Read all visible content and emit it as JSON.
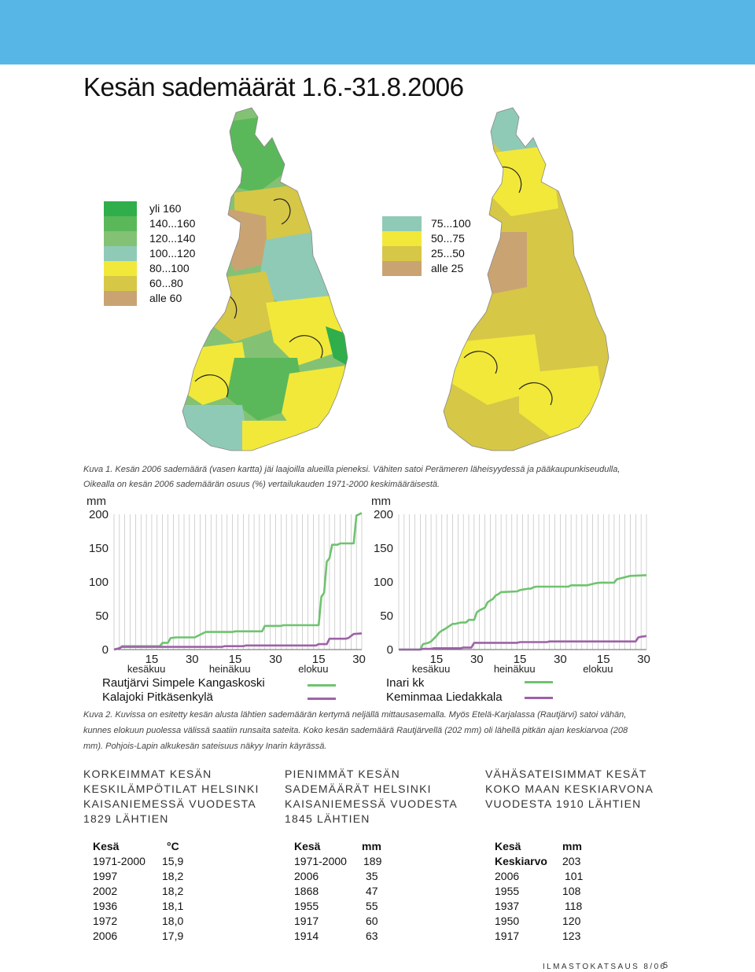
{
  "header": {
    "title": "Kesän sademäärät 1.6.-31.8.2006"
  },
  "colors": {
    "band": "#57b6e6",
    "dark_green": "#2fae4b",
    "green": "#5bb85a",
    "light_green": "#83c274",
    "teal": "#8fcab7",
    "yellow": "#f2e83a",
    "olive": "#d6c747",
    "tan": "#c9a472",
    "series_green": "#6fc36f",
    "series_purple": "#9e62a8"
  },
  "legend_left": {
    "items": [
      {
        "label": "yli 160",
        "color": "#2fae4b"
      },
      {
        "label": "140...160",
        "color": "#5bb85a"
      },
      {
        "label": "120...140",
        "color": "#83c274"
      },
      {
        "label": "100...120",
        "color": "#8fcab7"
      },
      {
        "label": "80...100",
        "color": "#f2e83a"
      },
      {
        "label": "60...80",
        "color": "#d6c747"
      },
      {
        "label": "alle 60",
        "color": "#c9a472"
      }
    ]
  },
  "legend_right": {
    "items": [
      {
        "label": "75...100",
        "color": "#8fcab7"
      },
      {
        "label": "50...75",
        "color": "#f2e83a"
      },
      {
        "label": "25...50",
        "color": "#d6c747"
      },
      {
        "label": "alle 25",
        "color": "#c9a472"
      }
    ]
  },
  "caption1": {
    "line1": "Kuva 1. Kesän 2006 sademäärä (vasen kartta) jäi laajoilla alueilla pieneksi. Vähiten satoi Perämeren läheisyydessä ja pääkaupunkiseudulla,",
    "line2": "Oikealla on kesän 2006 sademäärän osuus  (%) vertailukauden 1971-2000 keskimääräisestä."
  },
  "chart_data": [
    {
      "type": "line",
      "ylabel": "mm",
      "ylim": [
        0,
        200
      ],
      "yticks": [
        "0",
        "50",
        "100",
        "150",
        "200"
      ],
      "xticks": [
        "15",
        "30",
        "15",
        "30",
        "15",
        "30"
      ],
      "months": [
        "kesäkuu",
        "heinäkuu",
        "elokuu"
      ],
      "series": [
        {
          "name": "Rautjärvi Simpele Kangaskoski",
          "color": "#6fc36f",
          "x": [
            0,
            2,
            3,
            10,
            11,
            17,
            18,
            20,
            21,
            23,
            24,
            29,
            30,
            34,
            35,
            44,
            45,
            48,
            49,
            55,
            56,
            58,
            59,
            62,
            63,
            67,
            68,
            75,
            76,
            77,
            78,
            79,
            80,
            81,
            83,
            84,
            89,
            90,
            92
          ],
          "values": [
            0,
            2,
            5,
            5,
            5,
            5,
            10,
            10,
            17,
            18,
            18,
            18,
            18,
            26,
            26,
            26,
            27,
            27,
            27,
            27,
            35,
            35,
            35,
            35,
            36,
            36,
            36,
            36,
            36,
            78,
            84,
            130,
            135,
            155,
            155,
            157,
            157,
            198,
            202
          ]
        },
        {
          "name": "Kalajoki Pitkäsenkylä",
          "color": "#9e62a8",
          "x": [
            0,
            2,
            3,
            40,
            41,
            48,
            49,
            75,
            76,
            79,
            80,
            86,
            87,
            89,
            92
          ],
          "values": [
            0,
            2,
            4,
            4,
            5,
            5,
            6,
            6,
            8,
            8,
            16,
            16,
            17,
            23,
            24
          ]
        }
      ]
    },
    {
      "type": "line",
      "ylabel": "mm",
      "ylim": [
        0,
        200
      ],
      "yticks": [
        "0",
        "50",
        "100",
        "150",
        "200"
      ],
      "xticks": [
        "15",
        "30",
        "15",
        "30",
        "15",
        "30"
      ],
      "months": [
        "kesäkuu",
        "heinäkuu",
        "elokuu"
      ],
      "series": [
        {
          "name": "Inari kk",
          "color": "#6fc36f",
          "x": [
            0,
            8,
            9,
            11,
            12,
            14,
            15,
            16,
            17,
            20,
            21,
            23,
            24,
            25,
            26,
            28,
            29,
            30,
            31,
            32,
            33,
            35,
            36,
            37,
            38,
            44,
            45,
            48,
            49,
            50,
            51,
            58,
            59,
            63,
            64,
            70,
            71,
            73,
            75,
            80,
            81,
            84,
            86,
            92
          ],
          "values": [
            0,
            0,
            8,
            10,
            12,
            20,
            25,
            28,
            30,
            38,
            38,
            40,
            40,
            40,
            44,
            44,
            55,
            58,
            60,
            62,
            70,
            75,
            80,
            82,
            85,
            86,
            88,
            90,
            90,
            92,
            93,
            93,
            93,
            93,
            95,
            95,
            96,
            98,
            99,
            99,
            104,
            107,
            109,
            110
          ]
        },
        {
          "name": "Keminmaa Liedakkala",
          "color": "#9e62a8",
          "x": [
            0,
            8,
            9,
            12,
            13,
            23,
            24,
            27,
            28,
            44,
            45,
            55,
            56,
            88,
            89,
            90,
            92
          ],
          "values": [
            0,
            0,
            1,
            1,
            2,
            2,
            3,
            3,
            10,
            10,
            11,
            11,
            12,
            12,
            18,
            19,
            20
          ]
        }
      ]
    }
  ],
  "chart_legend": {
    "left": [
      "Rautjärvi Simpele Kangaskoski",
      "Kalajoki Pitkäsenkylä"
    ],
    "right": [
      "Inari kk",
      "Keminmaa Liedakkala"
    ]
  },
  "caption2": "Kuva 2. Kuvissa on esitetty kesän alusta lähtien sademäärän kertymä neljällä mittausasemalla. Myös Etelä-Karjalassa (Rautjärvi) satoi vähän, kunnes elokuun puolessa välissä saatiin runsaita sateita. Koko kesän sademäärä Rautjärvellä (202 mm) oli lähellä pitkän ajan keskiarvoa (208 mm). Pohjois-Lapin alkukesän sateisuus näkyy Inarin käyrässä.",
  "boxes": [
    {
      "title": [
        "KORKEIMMAT KESÄN",
        "KESKILÄMPÖTILAT HELSINKI",
        "KAISANIEMESSÄ VUODESTA",
        "1829 LÄHTIEN"
      ],
      "head": [
        "Kesä",
        "°C"
      ],
      "rows": [
        [
          "1971-2000",
          "15,9"
        ],
        [
          "1997",
          "18,2"
        ],
        [
          "2002",
          "18,2"
        ],
        [
          "1936",
          "18,1"
        ],
        [
          "1972",
          "18,0"
        ],
        [
          "2006",
          "17,9"
        ]
      ]
    },
    {
      "title": [
        "PIENIMMÄT KESÄN",
        "SADEMÄÄRÄT HELSINKI",
        "KAISANIEMESSÄ VUODESTA",
        "1845 LÄHTIEN"
      ],
      "head": [
        "Kesä",
        "mm"
      ],
      "rows": [
        [
          "1971-2000",
          "189"
        ],
        [
          "2006",
          "35"
        ],
        [
          "1868",
          "47"
        ],
        [
          "1955",
          "55"
        ],
        [
          "1917",
          "60"
        ],
        [
          "1914",
          "63"
        ]
      ]
    },
    {
      "title": [
        "VÄHÄSATEISIMMAT KESÄT",
        "KOKO MAAN KESKIARVONA",
        "VUODESTA 1910 LÄHTIEN"
      ],
      "head": [
        "Kesä",
        "mm"
      ],
      "rows": [
        [
          "Keskiarvo",
          "203"
        ],
        [
          "2006",
          "101"
        ],
        [
          "1955",
          "108"
        ],
        [
          "1937",
          "118"
        ],
        [
          "1950",
          "120"
        ],
        [
          "1917",
          "123"
        ]
      ]
    }
  ],
  "footer": {
    "text": "ILMASTOKATSAUS 8/06",
    "page": "5"
  }
}
